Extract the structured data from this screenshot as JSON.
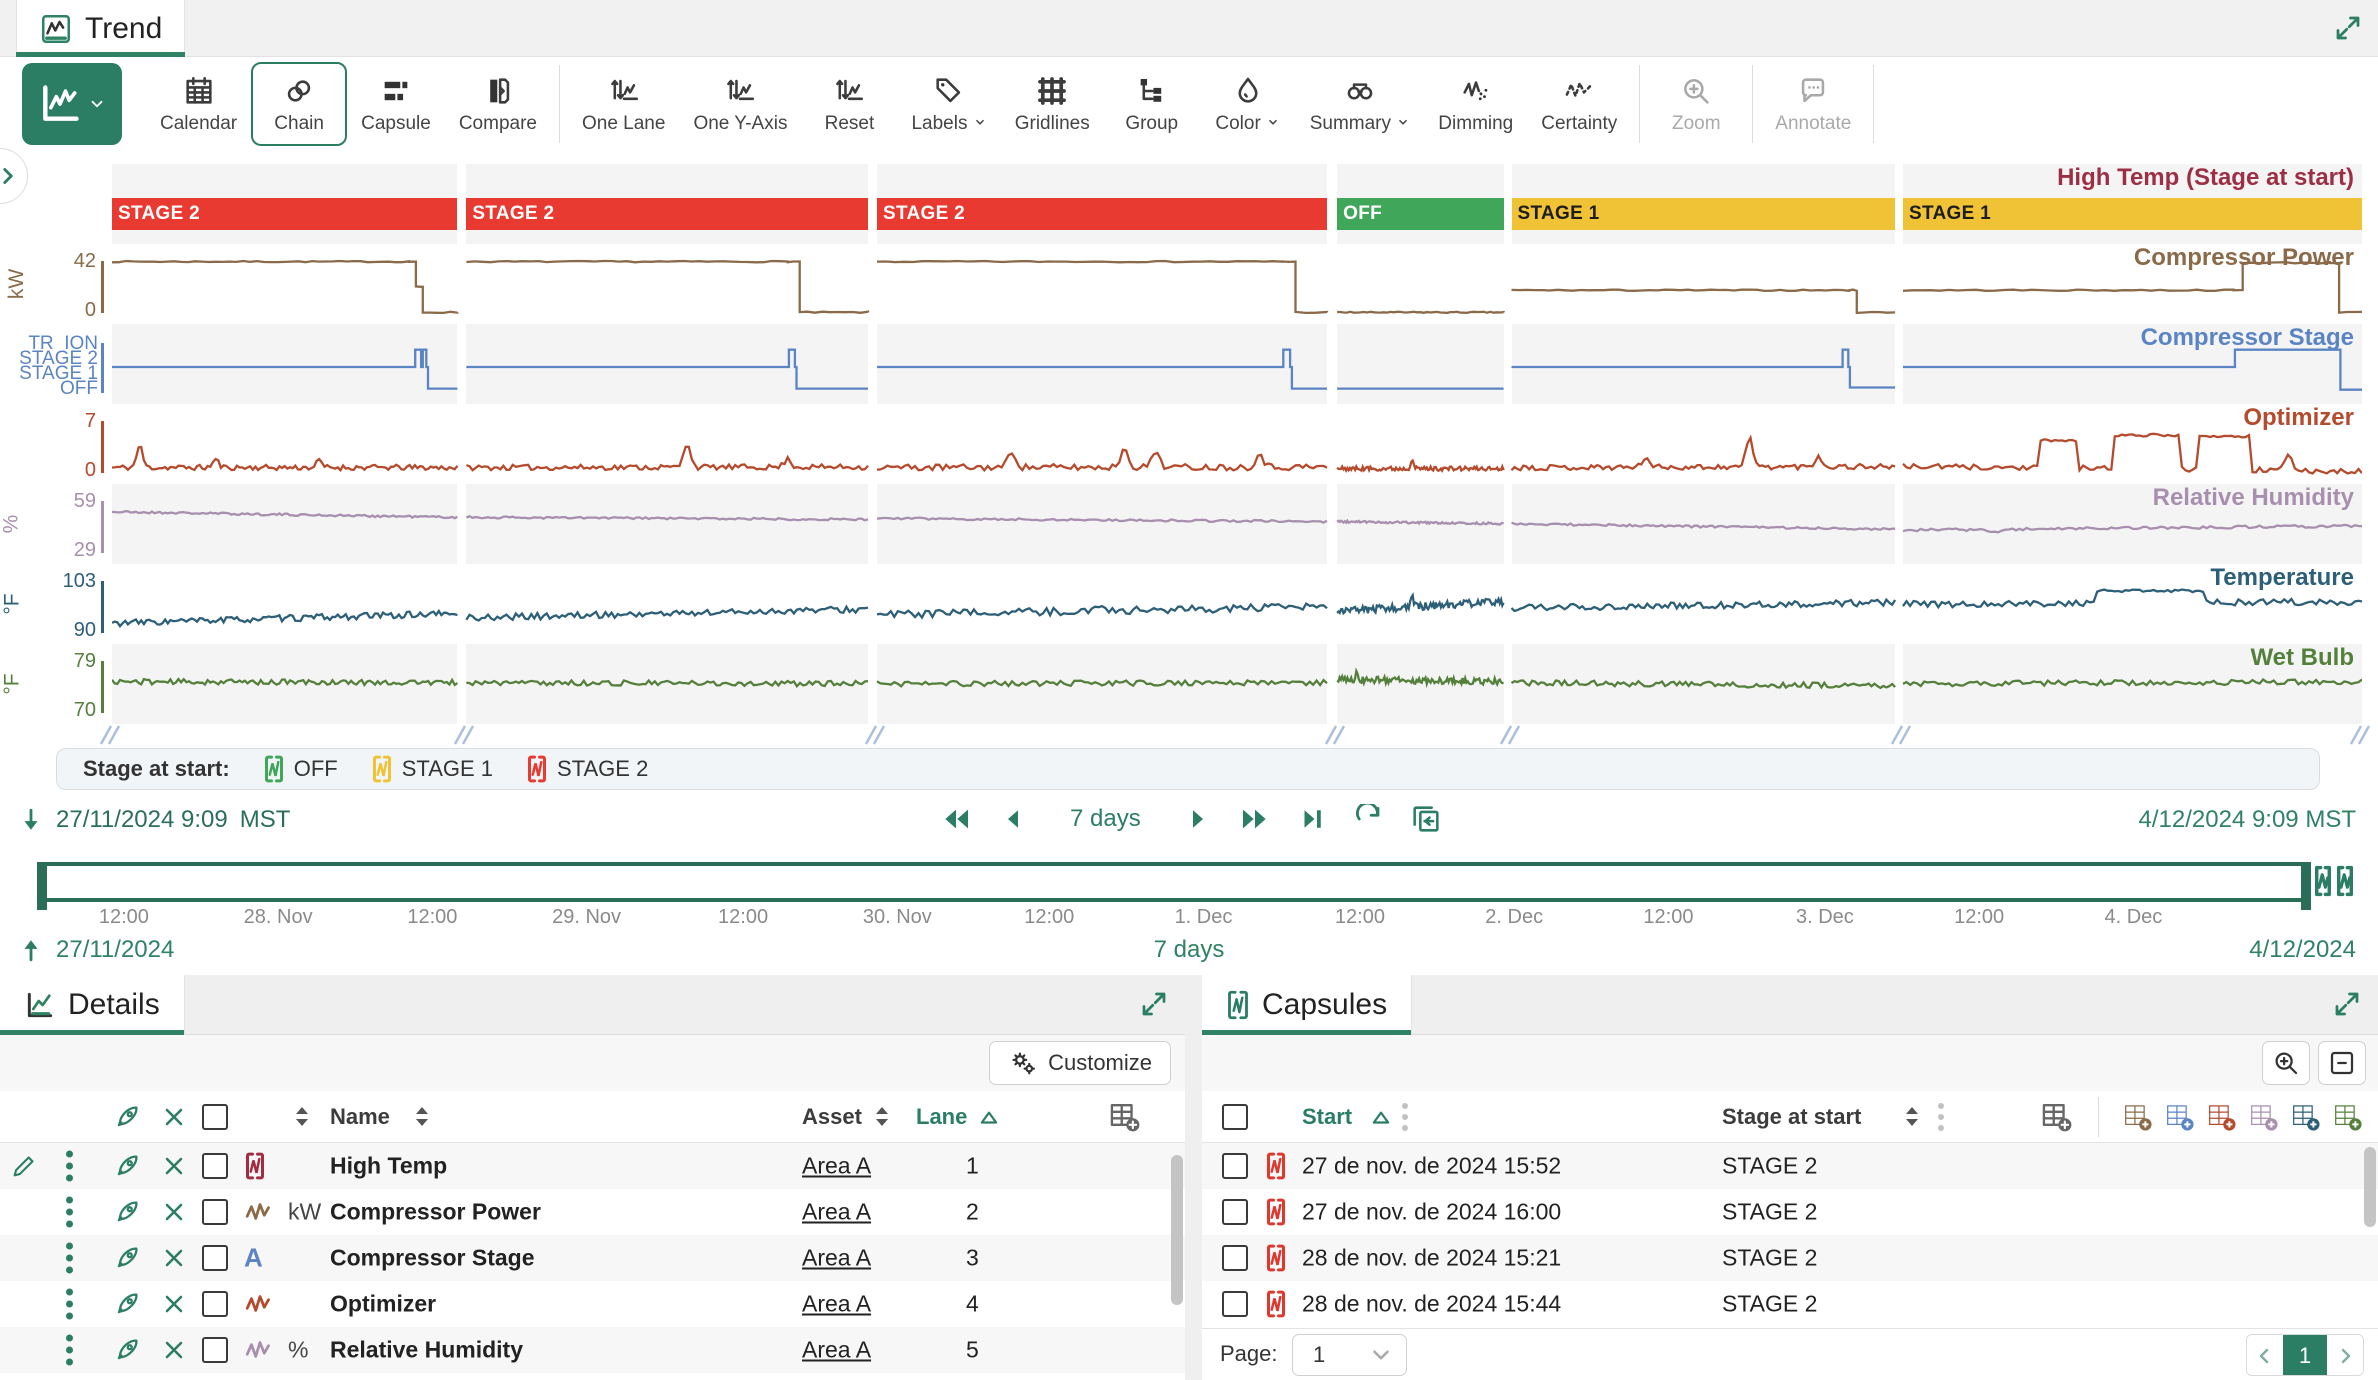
{
  "header": {
    "title": "Trend"
  },
  "toolbar": {
    "items": [
      {
        "id": "trend-type",
        "icon": "trendwhite",
        "label": "",
        "primary": true,
        "chevron": true
      },
      {
        "id": "calendar",
        "icon": "calendar",
        "label": "Calendar"
      },
      {
        "id": "chain",
        "icon": "chain",
        "label": "Chain",
        "selected": true
      },
      {
        "id": "capsule",
        "icon": "capsulebars",
        "label": "Capsule"
      },
      {
        "id": "compare",
        "icon": "compare",
        "label": "Compare"
      },
      {
        "divider": true
      },
      {
        "id": "one-lane",
        "icon": "updownwave",
        "label": "One Lane"
      },
      {
        "id": "one-y-axis",
        "icon": "updownwave",
        "label": "One Y-Axis"
      },
      {
        "id": "reset",
        "icon": "updownwave",
        "label": "Reset"
      },
      {
        "id": "labels",
        "icon": "tag",
        "label": "Labels",
        "chevron": true
      },
      {
        "id": "gridlines",
        "icon": "grid",
        "label": "Gridlines"
      },
      {
        "id": "group",
        "icon": "tree",
        "label": "Group"
      },
      {
        "id": "color",
        "icon": "droplet",
        "label": "Color",
        "chevron": true
      },
      {
        "id": "summary",
        "icon": "binoculars",
        "label": "Summary",
        "chevron": true
      },
      {
        "id": "dimming",
        "icon": "dimming",
        "label": "Dimming"
      },
      {
        "id": "certainty",
        "icon": "certainty",
        "label": "Certainty"
      },
      {
        "divider": true
      },
      {
        "id": "zoom",
        "icon": "magplus",
        "label": "Zoom",
        "disabled": true
      },
      {
        "divider": true
      },
      {
        "id": "annotate",
        "icon": "bubble",
        "label": "Annotate",
        "disabled": true
      },
      {
        "divider": true
      }
    ]
  },
  "chart_data": {
    "type": "line",
    "x_range": [
      "27/11/2024 9:09 MST",
      "4/12/2024 9:09 MST"
    ],
    "stage_colors": {
      "STAGE 2": "#e93a31",
      "STAGE 1": "#f0c235",
      "OFF": "#3fa65a"
    },
    "stage_text_colors": {
      "STAGE 2": "#ffffff",
      "STAGE 1": "#1c1c1c",
      "OFF": "#ffffff"
    },
    "segments": [
      {
        "stage": "STAGE 2",
        "start": 0,
        "end": 15.35
      },
      {
        "stage": "STAGE 2",
        "start": 15.75,
        "end": 33.6
      },
      {
        "stage": "STAGE 2",
        "start": 34.0,
        "end": 54.0
      },
      {
        "stage": "OFF",
        "start": 54.45,
        "end": 61.85
      },
      {
        "stage": "STAGE 1",
        "start": 62.2,
        "end": 79.25
      },
      {
        "stage": "STAGE 1",
        "start": 79.6,
        "end": 100
      }
    ],
    "lanes": [
      {
        "name": "High Temp (Stage at start)",
        "color": "#9c2f44",
        "kind": "capsule-bar",
        "bg": "grey"
      },
      {
        "name": "Compressor Power",
        "color": "#8a6a48",
        "unit": "kW",
        "ticks": [
          "42",
          "0"
        ],
        "kind": "steps",
        "bg": "white",
        "noise": 0.012,
        "seed": 7,
        "steps": [
          [
            [
              0,
              0.97
            ],
            [
              0.86,
              0.97
            ],
            [
              0.88,
              0.5
            ],
            [
              0.9,
              0.03
            ],
            [
              1,
              0.03
            ]
          ],
          [
            [
              0,
              0.97
            ],
            [
              0.8,
              0.97
            ],
            [
              0.83,
              0.03
            ],
            [
              1,
              0.03
            ]
          ],
          [
            [
              0,
              0.97
            ],
            [
              0.9,
              0.97
            ],
            [
              0.93,
              0.03
            ],
            [
              1,
              0.03
            ]
          ],
          [
            [
              0,
              0.03
            ],
            [
              1,
              0.03
            ]
          ],
          [
            [
              0,
              0.44
            ],
            [
              0.88,
              0.44
            ],
            [
              0.9,
              0.03
            ],
            [
              1,
              0.03
            ]
          ],
          [
            [
              0,
              0.44
            ],
            [
              0.72,
              0.44
            ],
            [
              0.74,
              0.95
            ],
            [
              0.93,
              0.95
            ],
            [
              0.95,
              0.03
            ],
            [
              1,
              0.03
            ]
          ]
        ]
      },
      {
        "name": "Compressor Stage",
        "color": "#5b84c4",
        "axis_labels": [
          "TR  ION",
          "STAGE 2",
          "STAGE 1",
          "OFF"
        ],
        "kind": "steps",
        "bg": "grey",
        "noise": 0,
        "seed": 3,
        "steps": [
          [
            [
              0,
              0.5
            ],
            [
              0.875,
              0.5
            ],
            [
              0.878,
              0.82
            ],
            [
              0.895,
              0.5
            ],
            [
              0.9,
              0.82
            ],
            [
              0.91,
              0.5
            ],
            [
              0.915,
              0.1
            ],
            [
              1,
              0.1
            ]
          ],
          [
            [
              0,
              0.5
            ],
            [
              0.8,
              0.5
            ],
            [
              0.803,
              0.82
            ],
            [
              0.818,
              0.5
            ],
            [
              0.822,
              0.1
            ],
            [
              1,
              0.1
            ]
          ],
          [
            [
              0,
              0.5
            ],
            [
              0.9,
              0.5
            ],
            [
              0.903,
              0.82
            ],
            [
              0.918,
              0.5
            ],
            [
              0.922,
              0.1
            ],
            [
              1,
              0.1
            ]
          ],
          [
            [
              0,
              0.1
            ],
            [
              1,
              0.1
            ]
          ],
          [
            [
              0,
              0.5
            ],
            [
              0.86,
              0.5
            ],
            [
              0.863,
              0.82
            ],
            [
              0.878,
              0.5
            ],
            [
              0.882,
              0.12
            ],
            [
              1,
              0.12
            ]
          ],
          [
            [
              0,
              0.5
            ],
            [
              0.72,
              0.5
            ],
            [
              0.723,
              0.82
            ],
            [
              0.95,
              0.82
            ],
            [
              0.953,
              0.08
            ],
            [
              1,
              0.08
            ]
          ]
        ]
      },
      {
        "name": "Optimizer",
        "color": "#b54a2c",
        "ticks": [
          "7",
          "0"
        ],
        "kind": "noisy",
        "bg": "white",
        "seed": 11,
        "segs": [
          {
            "from": 0.12,
            "to": 0.12,
            "noise": 0.05,
            "spikes": [
              [
                0.08,
                0.4
              ],
              [
                0.3,
                0.15
              ],
              [
                0.6,
                0.12
              ]
            ]
          },
          {
            "from": 0.12,
            "to": 0.13,
            "noise": 0.05,
            "spikes": [
              [
                0.55,
                0.45
              ],
              [
                0.8,
                0.15
              ]
            ]
          },
          {
            "from": 0.12,
            "to": 0.13,
            "noise": 0.06,
            "spikes": [
              [
                0.3,
                0.3
              ],
              [
                0.55,
                0.35
              ],
              [
                0.62,
                0.3
              ],
              [
                0.85,
                0.25
              ]
            ]
          },
          {
            "from": 0.1,
            "to": 0.1,
            "noise": 0.04,
            "spikes": [
              [
                0.45,
                0.18
              ]
            ]
          },
          {
            "from": 0.12,
            "to": 0.14,
            "noise": 0.05,
            "spikes": [
              [
                0.35,
                0.2
              ],
              [
                0.62,
                0.55
              ],
              [
                0.8,
                0.2
              ]
            ]
          },
          {
            "from": 0.14,
            "to": 0.05,
            "noise": 0.05,
            "plateaus": [
              [
                0.3,
                0.38,
                0.62
              ],
              [
                0.46,
                0.6,
                0.72
              ],
              [
                0.64,
                0.76,
                0.7
              ]
            ],
            "spikes": [
              [
                0.84,
                0.25
              ]
            ]
          }
        ]
      },
      {
        "name": "Relative Humidity",
        "color": "#a88fae",
        "unit": "%",
        "ticks": [
          "59",
          "29"
        ],
        "kind": "noisy",
        "bg": "grey",
        "seed": 21,
        "segs": [
          {
            "from": 0.78,
            "to": 0.68,
            "noise": 0.02
          },
          {
            "from": 0.68,
            "to": 0.64,
            "noise": 0.02
          },
          {
            "from": 0.66,
            "to": 0.6,
            "noise": 0.02
          },
          {
            "from": 0.6,
            "to": 0.56,
            "noise": 0.02
          },
          {
            "from": 0.56,
            "to": 0.46,
            "noise": 0.02
          },
          {
            "from": 0.44,
            "to": 0.52,
            "noise": 0.025,
            "spikes": [
              [
                0.2,
                -0.06
              ]
            ]
          }
        ]
      },
      {
        "name": "Temperature",
        "color": "#2d5f78",
        "unit": "°F",
        "ticks": [
          "103",
          "90"
        ],
        "kind": "noisy",
        "bg": "white",
        "seed": 33,
        "segs": [
          {
            "from": 0.2,
            "to": 0.38,
            "noise": 0.06
          },
          {
            "from": 0.3,
            "to": 0.46,
            "noise": 0.06
          },
          {
            "from": 0.36,
            "to": 0.5,
            "noise": 0.07,
            "spikes": [
              [
                0.5,
                0.12
              ]
            ]
          },
          {
            "from": 0.42,
            "to": 0.6,
            "noise": 0.07,
            "spikes": [
              [
                0.45,
                0.18
              ]
            ]
          },
          {
            "from": 0.48,
            "to": 0.58,
            "noise": 0.06
          },
          {
            "from": 0.55,
            "to": 0.6,
            "noise": 0.06,
            "plateaus": [
              [
                0.42,
                0.66,
                0.8
              ]
            ]
          }
        ]
      },
      {
        "name": "Wet Bulb",
        "color": "#55803c",
        "unit": "°F",
        "ticks": [
          "79",
          "70"
        ],
        "kind": "noisy",
        "bg": "grey",
        "seed": 44,
        "segs": [
          {
            "from": 0.6,
            "to": 0.58,
            "noise": 0.05
          },
          {
            "from": 0.58,
            "to": 0.56,
            "noise": 0.05
          },
          {
            "from": 0.56,
            "to": 0.58,
            "noise": 0.05
          },
          {
            "from": 0.64,
            "to": 0.6,
            "noise": 0.06,
            "spikes": [
              [
                0.12,
                0.12
              ]
            ]
          },
          {
            "from": 0.58,
            "to": 0.52,
            "noise": 0.05
          },
          {
            "from": 0.56,
            "to": 0.6,
            "noise": 0.05
          }
        ]
      }
    ]
  },
  "legend": {
    "title": "Stage at start:",
    "items": [
      {
        "label": "OFF",
        "color": "#3fa65a"
      },
      {
        "label": "STAGE 1",
        "color": "#f0c235"
      },
      {
        "label": "STAGE 2",
        "color": "#e93a31"
      }
    ]
  },
  "timebar": {
    "start": "27/11/2024 9:09",
    "start_tz": "MST",
    "end": "4/12/2024 9:09",
    "end_tz": "MST",
    "duration": "7 days"
  },
  "timeline": {
    "start_date": "27/11/2024",
    "end_date": "4/12/2024",
    "duration": "7 days",
    "ticks": [
      {
        "label": "12:00",
        "pos": 3.7
      },
      {
        "label": "28. Nov",
        "pos": 10.5
      },
      {
        "label": "12:00",
        "pos": 17.3
      },
      {
        "label": "29. Nov",
        "pos": 24.1
      },
      {
        "label": "12:00",
        "pos": 31.0
      },
      {
        "label": "30. Nov",
        "pos": 37.8
      },
      {
        "label": "12:00",
        "pos": 44.5
      },
      {
        "label": "1. Dec",
        "pos": 51.3
      },
      {
        "label": "12:00",
        "pos": 58.2
      },
      {
        "label": "2. Dec",
        "pos": 65.0
      },
      {
        "label": "12:00",
        "pos": 71.8
      },
      {
        "label": "3. Dec",
        "pos": 78.7
      },
      {
        "label": "12:00",
        "pos": 85.5
      },
      {
        "label": "4. Dec",
        "pos": 92.3
      }
    ]
  },
  "details": {
    "tab_label": "Details",
    "customize_label": "Customize",
    "columns": {
      "name": "Name",
      "asset": "Asset",
      "lane": "Lane"
    },
    "rows": [
      {
        "icon": "capsuleset",
        "color": "#a32c40",
        "unit": "",
        "name": "High Temp",
        "asset": "Area A",
        "lane": "1",
        "editing": true
      },
      {
        "icon": "zigzag",
        "color": "#8a6a48",
        "unit": "kW",
        "name": "Compressor Power",
        "asset": "Area A",
        "lane": "2"
      },
      {
        "icon": "letterA",
        "color": "#5b84c4",
        "unit": "",
        "name": "Compressor Stage",
        "asset": "Area A",
        "lane": "3"
      },
      {
        "icon": "zigzag",
        "color": "#b54a2c",
        "unit": "",
        "name": "Optimizer",
        "asset": "Area A",
        "lane": "4"
      },
      {
        "icon": "zigzag",
        "color": "#a88fae",
        "unit": "%",
        "name": "Relative Humidity",
        "asset": "Area A",
        "lane": "5"
      }
    ]
  },
  "capsules": {
    "tab_label": "Capsules",
    "columns": {
      "start": "Start",
      "stage": "Stage at start"
    },
    "rows": [
      {
        "start": "27 de nov. de 2024 15:52",
        "stage": "STAGE 2"
      },
      {
        "start": "27 de nov. de 2024 16:00",
        "stage": "STAGE 2"
      },
      {
        "start": "28 de nov. de 2024 15:21",
        "stage": "STAGE 2"
      },
      {
        "start": "28 de nov. de 2024 15:44",
        "stage": "STAGE 2"
      }
    ],
    "capsule_color": "#e0372e",
    "add_column_grey": "#6b6b6b",
    "add_column_colors": [
      "#8a6a48",
      "#5b84c4",
      "#b54a2c",
      "#a88fae",
      "#2d5f78",
      "#55803c"
    ],
    "page_label": "Page:",
    "page_value": "1",
    "current_page": "1"
  }
}
